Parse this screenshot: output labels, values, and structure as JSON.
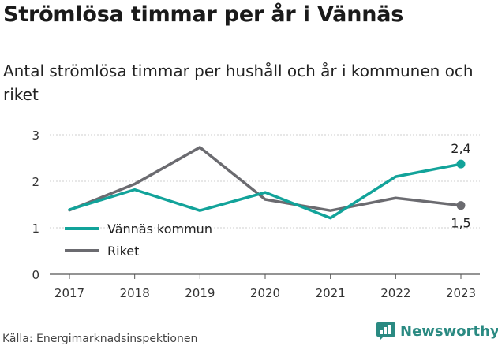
{
  "title": "Strömlösa timmar per år i Vännäs",
  "subtitle": "Antal strömlösa timmar per hushåll och år i kommunen och riket",
  "source": "Källa: Energimarknadsinspektionen",
  "brand": "Newsworthy",
  "colors": {
    "vannas": "#12a39a",
    "riket": "#6b6b70",
    "grid": "#cfcfcf",
    "brand": "#2a8a82"
  },
  "chart_data": {
    "type": "line",
    "x": [
      "2017",
      "2018",
      "2019",
      "2020",
      "2021",
      "2022",
      "2023"
    ],
    "yticks": [
      "0",
      "1",
      "2",
      "3"
    ],
    "ylim": [
      0,
      3
    ],
    "grid": true,
    "legend": "bottom-left",
    "series": [
      {
        "name": "Vännäs kommun",
        "color": "#12a39a",
        "values": [
          1.39,
          1.82,
          1.37,
          1.76,
          1.21,
          2.1,
          2.37
        ],
        "end_label": "2,4"
      },
      {
        "name": "Riket",
        "color": "#6b6b70",
        "values": [
          1.38,
          1.94,
          2.73,
          1.61,
          1.37,
          1.64,
          1.48
        ],
        "end_label": "1,5"
      }
    ]
  }
}
